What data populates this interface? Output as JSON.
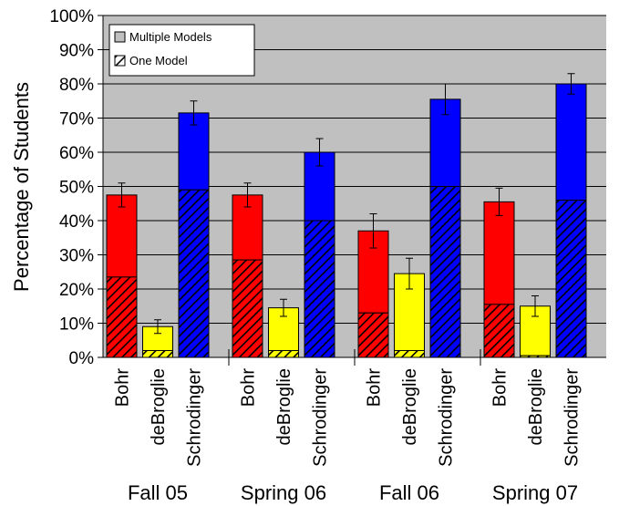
{
  "chart_data": {
    "type": "bar",
    "stacked": true,
    "ylabel": "Percentage of Students",
    "ylim": [
      0,
      100
    ],
    "y_ticks": [
      "0%",
      "10%",
      "20%",
      "30%",
      "40%",
      "50%",
      "60%",
      "70%",
      "80%",
      "90%",
      "100%"
    ],
    "grid": true,
    "legend": {
      "placement": "top-left",
      "entries": [
        {
          "label": "Multiple Models",
          "swatch": "solid-gray"
        },
        {
          "label": "One Model",
          "swatch": "hatched"
        }
      ]
    },
    "groups": [
      {
        "name": "Fall 05",
        "bars": [
          {
            "category": "Bohr",
            "one_model": 23.5,
            "total": 47.5,
            "error": 3.5,
            "color": "#ff0000"
          },
          {
            "category": "deBroglie",
            "one_model": 2,
            "total": 9,
            "error": 2,
            "color": "#ffff00"
          },
          {
            "category": "Schrodinger",
            "one_model": 49,
            "total": 71.5,
            "error": 3.5,
            "color": "#0000ff"
          }
        ]
      },
      {
        "name": "Spring 06",
        "bars": [
          {
            "category": "Bohr",
            "one_model": 28.5,
            "total": 47.5,
            "error": 3.5,
            "color": "#ff0000"
          },
          {
            "category": "deBroglie",
            "one_model": 2,
            "total": 14.5,
            "error": 2.5,
            "color": "#ffff00"
          },
          {
            "category": "Schrodinger",
            "one_model": 40,
            "total": 60,
            "error": 4,
            "color": "#0000ff"
          }
        ]
      },
      {
        "name": "Fall 06",
        "bars": [
          {
            "category": "Bohr",
            "one_model": 13,
            "total": 37,
            "error": 5,
            "color": "#ff0000"
          },
          {
            "category": "deBroglie",
            "one_model": 2,
            "total": 24.5,
            "error": 4.5,
            "color": "#ffff00"
          },
          {
            "category": "Schrodinger",
            "one_model": 50,
            "total": 75.5,
            "error": 4.5,
            "color": "#0000ff"
          }
        ]
      },
      {
        "name": "Spring 07",
        "bars": [
          {
            "category": "Bohr",
            "one_model": 15.5,
            "total": 45.5,
            "error": 4,
            "color": "#ff0000"
          },
          {
            "category": "deBroglie",
            "one_model": 0.5,
            "total": 15,
            "error": 3,
            "color": "#ffff00"
          },
          {
            "category": "Schrodinger",
            "one_model": 46,
            "total": 80,
            "error": 3,
            "color": "#0000ff"
          }
        ]
      }
    ],
    "colors": {
      "plot_background": "#c0c0c0",
      "gridline": "#000000",
      "hatch": "#000000",
      "legend_swatch_multiple": "#c0c0c0"
    }
  }
}
